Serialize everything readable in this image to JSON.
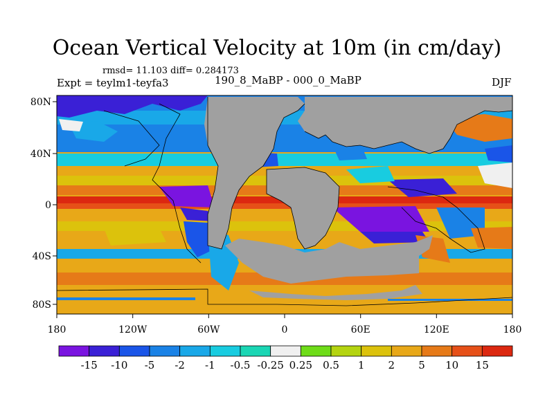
{
  "title": "Ocean Vertical Velocity at 10m (in cm/day)",
  "stats": "rmsd= 11.103 diff= 0.284173",
  "expt": "Expt = teylm1-teyfa3",
  "subtitle": "190_8_MaBP - 000_0_MaBP",
  "season": "DJF",
  "x_ticks": [
    "180",
    "120W",
    "60W",
    "0",
    "60E",
    "120E",
    "180"
  ],
  "y_ticks": [
    "80N",
    "40N",
    "0",
    "40S",
    "80S"
  ],
  "colorbar": {
    "labels": [
      "-15",
      "-10",
      "-5",
      "-2",
      "-1",
      "-0.5",
      "-0.25",
      "0.25",
      "0.5",
      "1",
      "2",
      "5",
      "10",
      "15"
    ],
    "colors": [
      "#7a14e0",
      "#3a20d6",
      "#1a55e8",
      "#1a82e6",
      "#19a8e8",
      "#18cce0",
      "#1ad6b4",
      "#f0f0f0",
      "#6edc18",
      "#b4d410",
      "#dcc20c",
      "#e8a818",
      "#e67a18",
      "#e65018",
      "#dc2810"
    ]
  },
  "colors": {
    "land": "#a0a0a0",
    "missing": "#ffffff"
  }
}
